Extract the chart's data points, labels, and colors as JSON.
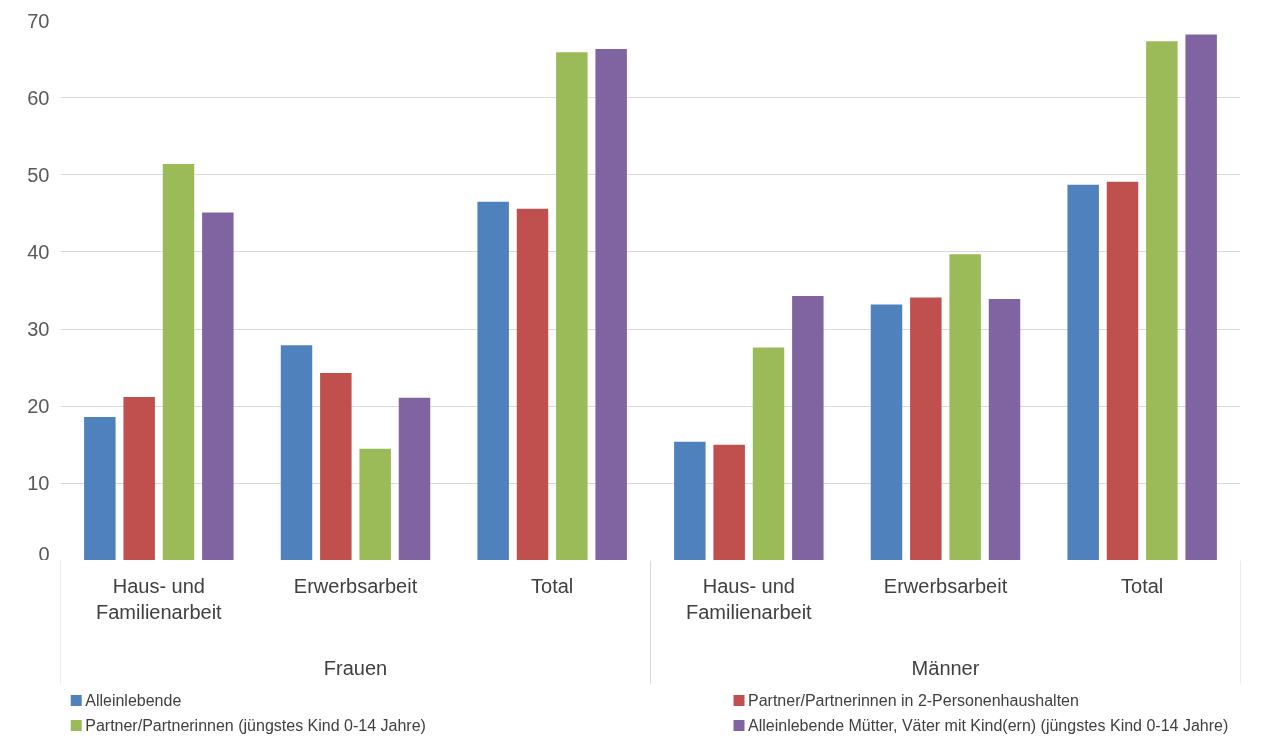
{
  "chart_data": {
    "type": "bar",
    "categories": [
      "Haus- und Familienarbeit",
      "Erwerbsarbeit",
      "Total",
      "Haus- und Familienarbeit",
      "Erwerbsarbeit",
      "Total"
    ],
    "annotations": [
      "Frauen",
      "Männer"
    ],
    "series": [
      {
        "name": "Alleinlebende",
        "color": "#4f81bd",
        "values": [
          18.6,
          27.9,
          46.5,
          15.4,
          33.2,
          48.7
        ]
      },
      {
        "name": "Partner/Partnerinnen in 2-Personenhaushalten",
        "color": "#c0504d",
        "values": [
          21.2,
          24.3,
          45.6,
          15.0,
          34.1,
          49.1
        ]
      },
      {
        "name": "Partner/Partnerinnen (jüngstes Kind 0-14 Jahre)",
        "color": "#9bbb59",
        "values": [
          51.4,
          14.5,
          65.9,
          27.6,
          39.7,
          67.3
        ]
      },
      {
        "name": "Alleinlebende Mütter, Väter mit Kind(ern) (jüngstes Kind 0-14 Jahre)",
        "color": "#8064a2",
        "values": [
          45.1,
          21.1,
          66.3,
          34.3,
          33.9,
          68.2
        ]
      }
    ],
    "ylim": [
      0,
      70
    ],
    "yticks": [
      0,
      10,
      20,
      30,
      40,
      50,
      60,
      70
    ],
    "grid": "y",
    "legend": "bottom"
  }
}
